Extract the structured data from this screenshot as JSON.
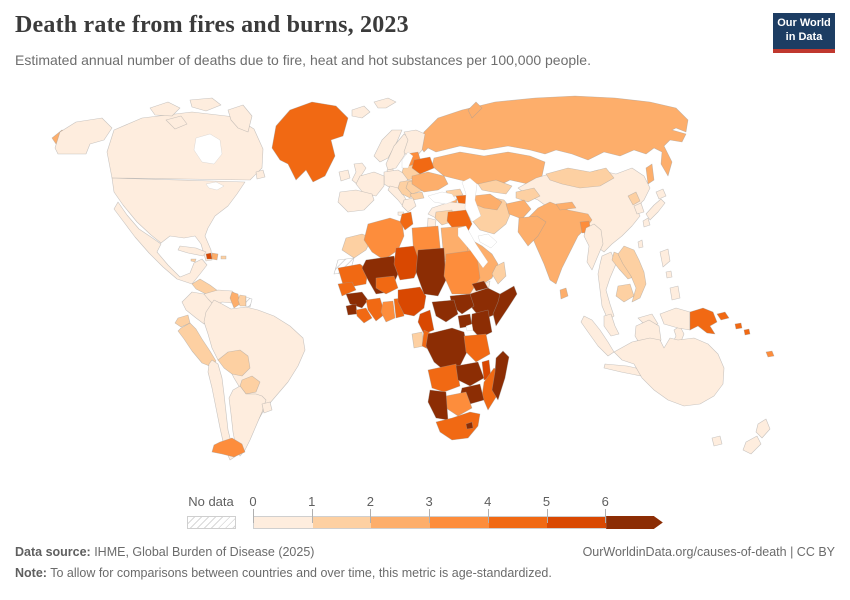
{
  "header": {
    "title": "Death rate from fires and burns, 2023",
    "subtitle": "Estimated annual number of deaths due to fire, heat and hot substances per 100,000 people."
  },
  "logo": {
    "line1": "Our World",
    "line2": "in Data",
    "bg_color": "#1d3d63",
    "accent_color": "#c0382e"
  },
  "legend": {
    "no_data_label": "No data",
    "ticks": [
      "0",
      "1",
      "2",
      "3",
      "4",
      "5",
      "6"
    ],
    "bins": [
      {
        "range": "0-1",
        "color": "#feedde"
      },
      {
        "range": "1-2",
        "color": "#fdd0a2"
      },
      {
        "range": "2-3",
        "color": "#fdae6b"
      },
      {
        "range": "3-4",
        "color": "#fd8d3c"
      },
      {
        "range": "4-5",
        "color": "#f16913"
      },
      {
        "range": "5-6",
        "color": "#d94801"
      },
      {
        "range": "6+",
        "color": "#8c2d04"
      }
    ]
  },
  "footer": {
    "source_label": "Data source:",
    "source": " IHME, Global Burden of Disease (2025)",
    "link": "OurWorldinData.org/causes-of-death | CC BY",
    "note_label": "Note:",
    "note": " To allow for comparisons between countries and over time, this metric is age-standardized."
  },
  "chart_data": {
    "type": "heatmap",
    "subtype": "world-choropleth",
    "title": "Death rate from fires and burns, 2023",
    "unit": "deaths due to fire, heat and hot substances per 100,000 people (age-standardized)",
    "year": 2023,
    "legend_position": "bottom",
    "scale_range": [
      0,
      6
    ],
    "scale_open_ended": true,
    "no_data_style": "diagonal-hatch",
    "bin_ranges": [
      "0-1",
      "1-2",
      "2-3",
      "3-4",
      "4-5",
      "5-6",
      "6+"
    ],
    "regions": {
      "canada": 0,
      "usa": 0,
      "mexico": 0,
      "central-america-north": 1,
      "central-america-south": 0,
      "cuba": 0,
      "jamaica": 1,
      "haiti": 5,
      "dominican-republic": 2,
      "puerto-rico": 1,
      "greenland": 4,
      "iceland": 0,
      "colombia": 0,
      "venezuela": 0,
      "guyana": 2,
      "suriname": 1,
      "french-guiana": "nodata",
      "ecuador": 1,
      "peru": 1,
      "brazil": 0,
      "bolivia": 1,
      "paraguay": 1,
      "chile": 0,
      "tierra-del-fuego": 3,
      "argentina": 0,
      "uruguay": 0,
      "ireland": 0,
      "uk": 0,
      "norway": 0,
      "sweden": 0,
      "finland": 0,
      "denmark": 0,
      "svalbard": 0,
      "central-europe": 0,
      "france": 0,
      "iberia": 0,
      "italy": 0,
      "greece": 0,
      "poland": 1,
      "balkans": 1,
      "romania": 1,
      "bulgaria": 1,
      "baltics": 3,
      "belarus": 4,
      "ukraine": 2,
      "russia": 2,
      "kazakhstan": 2,
      "georgia": 1,
      "armenia": 2,
      "azerbaijan": 4,
      "turkey": 0,
      "syria": 1,
      "levant": 0,
      "iraq": 4,
      "iran": 1,
      "saudi-arabia": 2,
      "yemen": 0,
      "oman": 1,
      "turkmenistan": 2,
      "uzbekistan": 1,
      "kyrgyzstan-tajikistan": 1,
      "afghanistan": 2,
      "pakistan": 2,
      "india": 2,
      "nepal": 2,
      "bangladesh": 3,
      "sri-lanka": 2,
      "china": 0,
      "mongolia": 1,
      "north-korea": 1,
      "south-korea": 0,
      "japan": 0,
      "taiwan": 0,
      "myanmar": 0,
      "thailand": 0,
      "laos": 1,
      "vietnam": 1,
      "cambodia": 1,
      "malaysia": 0,
      "indonesia": 0,
      "philippines": 0,
      "papua-new-guinea": 4,
      "solomon-islands": 4,
      "fiji": 3,
      "australia": 0,
      "new-zealand": 0,
      "morocco": 1,
      "western-sahara": "nodata",
      "algeria": 3,
      "tunisia": 4,
      "libya": 3,
      "egypt": 2,
      "mauritania": 4,
      "senegal": 4,
      "mali": 6,
      "burkina-faso": 4,
      "guinea": 6,
      "sierra-leone": 6,
      "liberia": 4,
      "ivory-coast": 4,
      "ghana": 3,
      "togo-benin": 4,
      "niger": 5,
      "nigeria": 5,
      "chad": 6,
      "sudan": 3,
      "eritrea": 6,
      "ethiopia": 6,
      "somalia": 6,
      "south-sudan": 6,
      "central-african-republic": 6,
      "cameroon": 5,
      "gabon": 1,
      "congo": 4,
      "drc": 6,
      "uganda": 6,
      "kenya": 6,
      "tanzania": 4,
      "angola": 4,
      "zambia": 6,
      "malawi": 5,
      "mozambique": 4,
      "zimbabwe": 6,
      "botswana": 3,
      "namibia": 6,
      "south-africa": 4,
      "lesotho": 6,
      "madagascar": 6
    }
  }
}
